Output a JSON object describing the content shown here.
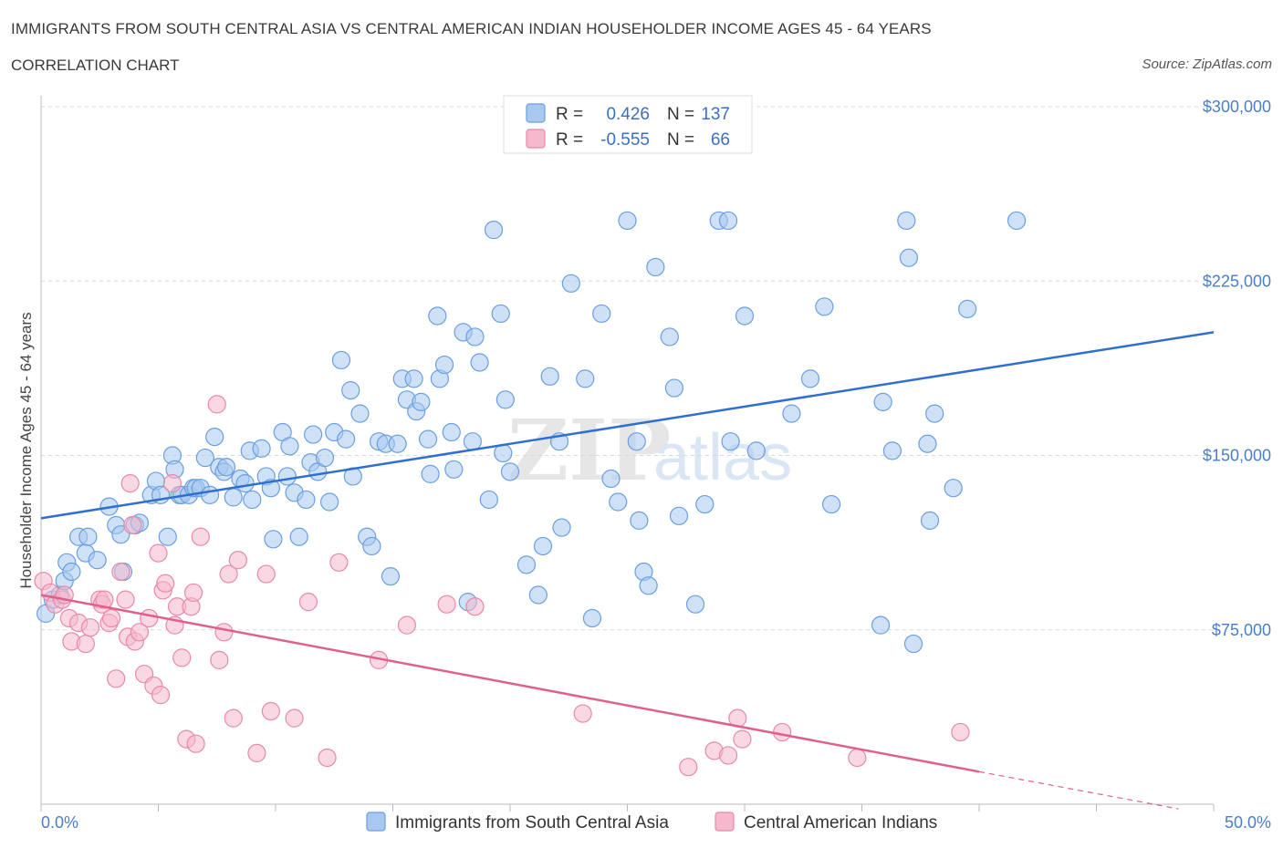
{
  "header": {
    "title": "IMMIGRANTS FROM SOUTH CENTRAL ASIA VS CENTRAL AMERICAN INDIAN HOUSEHOLDER INCOME AGES 45 - 64 YEARS",
    "subtitle": "CORRELATION CHART",
    "source": "Source: ZipAtlas.com"
  },
  "colors": {
    "blue_fill": "#a8c8f0",
    "blue_stroke": "#6a9fe0",
    "blue_line": "#2f6fcf",
    "pink_fill": "#f5b8cc",
    "pink_stroke": "#e889a8",
    "pink_line": "#e0608c",
    "axis_text": "#4a7ec9",
    "grid": "#d8d8d8"
  },
  "legend": {
    "r_label": "R =",
    "n_label": "N =",
    "rows": [
      {
        "r": "0.426",
        "n": "137"
      },
      {
        "r": "-0.555",
        "n": "66"
      }
    ]
  },
  "watermark": {
    "zip": "ZIP",
    "atlas": "atlas"
  },
  "chart_data": {
    "type": "scatter",
    "title": "IMMIGRANTS FROM SOUTH CENTRAL ASIA VS CENTRAL AMERICAN INDIAN HOUSEHOLDER INCOME AGES 45 - 64 YEARS",
    "xlabel": "",
    "ylabel": "Householder Income Ages 45 - 64 years",
    "xlim": [
      0,
      50
    ],
    "ylim": [
      0,
      300000
    ],
    "x_tick_labels": [
      "0.0%",
      "50.0%"
    ],
    "y_ticks": [
      75000,
      150000,
      225000,
      300000
    ],
    "y_tick_labels": [
      "$75,000",
      "$150,000",
      "$225,000",
      "$300,000"
    ],
    "legend_position": "top-center",
    "series": [
      {
        "name": "Immigrants from South Central Asia",
        "r": 0.426,
        "n": 137,
        "trend": {
          "x": [
            0,
            50
          ],
          "y": [
            123000,
            203000
          ]
        },
        "points": [
          [
            0.2,
            82000
          ],
          [
            0.5,
            88000
          ],
          [
            0.8,
            90000
          ],
          [
            1.0,
            96000
          ],
          [
            1.1,
            104000
          ],
          [
            1.3,
            100000
          ],
          [
            1.6,
            115000
          ],
          [
            1.9,
            108000
          ],
          [
            2.0,
            115000
          ],
          [
            2.4,
            105000
          ],
          [
            2.9,
            128000
          ],
          [
            3.2,
            120000
          ],
          [
            3.4,
            116000
          ],
          [
            3.5,
            100000
          ],
          [
            4.0,
            120000
          ],
          [
            4.2,
            121000
          ],
          [
            4.7,
            133000
          ],
          [
            4.9,
            139000
          ],
          [
            5.1,
            133000
          ],
          [
            5.4,
            115000
          ],
          [
            5.6,
            150000
          ],
          [
            5.7,
            144000
          ],
          [
            5.9,
            133000
          ],
          [
            6.0,
            133000
          ],
          [
            6.3,
            133000
          ],
          [
            6.5,
            136000
          ],
          [
            6.6,
            136000
          ],
          [
            6.8,
            136000
          ],
          [
            7.0,
            149000
          ],
          [
            7.2,
            133000
          ],
          [
            7.4,
            158000
          ],
          [
            7.6,
            145000
          ],
          [
            7.8,
            143000
          ],
          [
            7.9,
            145000
          ],
          [
            8.2,
            132000
          ],
          [
            8.5,
            140000
          ],
          [
            8.7,
            138000
          ],
          [
            8.9,
            152000
          ],
          [
            9.0,
            131000
          ],
          [
            9.4,
            153000
          ],
          [
            9.6,
            141000
          ],
          [
            9.8,
            136000
          ],
          [
            9.9,
            114000
          ],
          [
            10.3,
            160000
          ],
          [
            10.5,
            141000
          ],
          [
            10.6,
            154000
          ],
          [
            10.8,
            134000
          ],
          [
            11.0,
            115000
          ],
          [
            11.3,
            131000
          ],
          [
            11.5,
            147000
          ],
          [
            11.6,
            159000
          ],
          [
            11.8,
            143000
          ],
          [
            12.1,
            149000
          ],
          [
            12.3,
            130000
          ],
          [
            12.5,
            160000
          ],
          [
            12.8,
            191000
          ],
          [
            13.0,
            157000
          ],
          [
            13.2,
            178000
          ],
          [
            13.3,
            141000
          ],
          [
            13.6,
            168000
          ],
          [
            13.9,
            115000
          ],
          [
            14.1,
            111000
          ],
          [
            14.4,
            156000
          ],
          [
            14.7,
            155000
          ],
          [
            14.9,
            98000
          ],
          [
            15.2,
            155000
          ],
          [
            15.4,
            183000
          ],
          [
            15.6,
            174000
          ],
          [
            15.9,
            183000
          ],
          [
            16.0,
            169000
          ],
          [
            16.2,
            173000
          ],
          [
            16.5,
            157000
          ],
          [
            16.6,
            142000
          ],
          [
            16.9,
            210000
          ],
          [
            17.0,
            183000
          ],
          [
            17.2,
            189000
          ],
          [
            17.5,
            160000
          ],
          [
            17.6,
            144000
          ],
          [
            18.0,
            203000
          ],
          [
            18.2,
            87000
          ],
          [
            18.4,
            156000
          ],
          [
            18.5,
            201000
          ],
          [
            18.7,
            190000
          ],
          [
            19.1,
            131000
          ],
          [
            19.3,
            247000
          ],
          [
            19.6,
            211000
          ],
          [
            19.7,
            151000
          ],
          [
            19.8,
            174000
          ],
          [
            20.0,
            143000
          ],
          [
            20.7,
            103000
          ],
          [
            21.2,
            90000
          ],
          [
            21.4,
            111000
          ],
          [
            21.7,
            184000
          ],
          [
            22.1,
            156000
          ],
          [
            22.2,
            119000
          ],
          [
            22.6,
            224000
          ],
          [
            23.2,
            183000
          ],
          [
            23.5,
            80000
          ],
          [
            23.9,
            211000
          ],
          [
            24.3,
            140000
          ],
          [
            24.6,
            130000
          ],
          [
            25.0,
            251000
          ],
          [
            25.4,
            156000
          ],
          [
            25.5,
            122000
          ],
          [
            25.7,
            100000
          ],
          [
            25.9,
            94000
          ],
          [
            26.2,
            231000
          ],
          [
            26.8,
            201000
          ],
          [
            27.0,
            179000
          ],
          [
            27.2,
            124000
          ],
          [
            27.9,
            86000
          ],
          [
            28.3,
            129000
          ],
          [
            28.9,
            251000
          ],
          [
            29.3,
            251000
          ],
          [
            29.4,
            156000
          ],
          [
            30.0,
            210000
          ],
          [
            30.5,
            152000
          ],
          [
            32.0,
            168000
          ],
          [
            32.8,
            183000
          ],
          [
            33.4,
            214000
          ],
          [
            33.7,
            129000
          ],
          [
            35.8,
            77000
          ],
          [
            35.9,
            173000
          ],
          [
            36.3,
            152000
          ],
          [
            36.9,
            251000
          ],
          [
            37.0,
            235000
          ],
          [
            37.2,
            69000
          ],
          [
            37.8,
            155000
          ],
          [
            37.9,
            122000
          ],
          [
            38.1,
            168000
          ],
          [
            38.9,
            136000
          ],
          [
            39.5,
            213000
          ],
          [
            41.6,
            251000
          ]
        ]
      },
      {
        "name": "Central American Indians",
        "r": -0.555,
        "n": 66,
        "trend": {
          "x": [
            0,
            40
          ],
          "y": [
            90000,
            14000
          ]
        },
        "trend_dashed": {
          "x": [
            40,
            48.5
          ],
          "y": [
            14000,
            -2000
          ]
        },
        "points": [
          [
            0.1,
            96000
          ],
          [
            0.4,
            91000
          ],
          [
            0.6,
            86000
          ],
          [
            0.9,
            88000
          ],
          [
            1.0,
            90000
          ],
          [
            1.2,
            80000
          ],
          [
            1.3,
            70000
          ],
          [
            1.6,
            78000
          ],
          [
            1.9,
            69000
          ],
          [
            2.1,
            76000
          ],
          [
            2.5,
            88000
          ],
          [
            2.6,
            86000
          ],
          [
            2.7,
            88000
          ],
          [
            2.9,
            78000
          ],
          [
            3.0,
            80000
          ],
          [
            3.2,
            54000
          ],
          [
            3.4,
            100000
          ],
          [
            3.6,
            88000
          ],
          [
            3.7,
            72000
          ],
          [
            3.9,
            120000
          ],
          [
            3.8,
            138000
          ],
          [
            4.0,
            70000
          ],
          [
            4.2,
            74000
          ],
          [
            4.4,
            56000
          ],
          [
            4.6,
            80000
          ],
          [
            4.8,
            51000
          ],
          [
            5.0,
            108000
          ],
          [
            5.1,
            47000
          ],
          [
            5.2,
            92000
          ],
          [
            5.3,
            95000
          ],
          [
            5.6,
            138000
          ],
          [
            5.7,
            77000
          ],
          [
            5.8,
            85000
          ],
          [
            6.0,
            63000
          ],
          [
            6.2,
            28000
          ],
          [
            6.4,
            85000
          ],
          [
            6.5,
            91000
          ],
          [
            6.6,
            26000
          ],
          [
            6.8,
            115000
          ],
          [
            7.5,
            172000
          ],
          [
            7.6,
            62000
          ],
          [
            7.8,
            74000
          ],
          [
            8.0,
            99000
          ],
          [
            8.2,
            37000
          ],
          [
            8.4,
            105000
          ],
          [
            9.2,
            22000
          ],
          [
            9.6,
            99000
          ],
          [
            9.8,
            40000
          ],
          [
            10.8,
            37000
          ],
          [
            11.4,
            87000
          ],
          [
            12.2,
            20000
          ],
          [
            12.7,
            104000
          ],
          [
            14.4,
            62000
          ],
          [
            15.6,
            77000
          ],
          [
            17.3,
            86000
          ],
          [
            18.5,
            85000
          ],
          [
            23.1,
            39000
          ],
          [
            27.6,
            16000
          ],
          [
            28.7,
            23000
          ],
          [
            29.3,
            21000
          ],
          [
            29.7,
            37000
          ],
          [
            29.9,
            28000
          ],
          [
            31.6,
            31000
          ],
          [
            34.8,
            20000
          ],
          [
            39.2,
            31000
          ]
        ]
      }
    ]
  },
  "bottom_legend": [
    {
      "label": "Immigrants from South Central Asia"
    },
    {
      "label": "Central American Indians"
    }
  ]
}
